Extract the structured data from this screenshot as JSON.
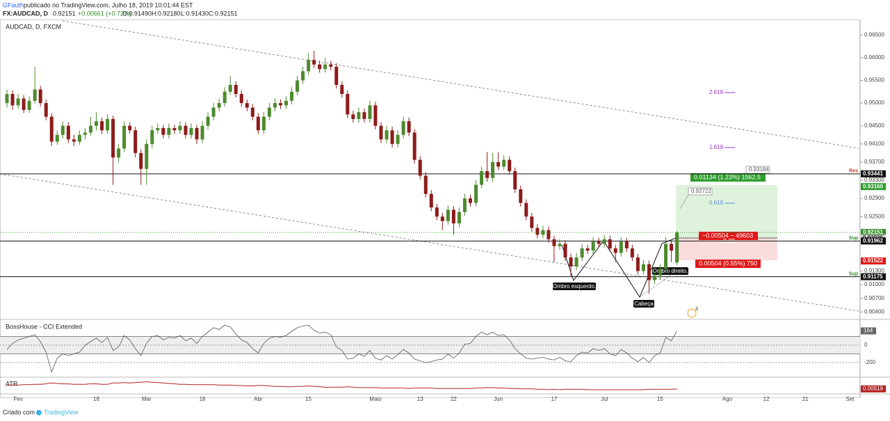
{
  "header": {
    "author": "GFauth",
    "published": "publicado no TradingView.com, Julho 18, 2019 10:01:44 EST",
    "symbol": "FX:AUDCAD, D",
    "price": "0.92151",
    "change": "+0.00661 (+0.72%)",
    "open": "O:0.91490",
    "high": "H:0.92180",
    "low": "L:0.91430",
    "close": "C:0.92151"
  },
  "footer": {
    "prefix": "Criado com",
    "brand": "TradingView"
  },
  "chart_data": {
    "type": "candlestick",
    "title": "AUDCAD, D, FXCM",
    "up_color": "#4e8a2e",
    "down_color": "#8e1b1b",
    "ylim": [
      0.9025,
      0.9678
    ],
    "yticks": [
      {
        "value": 0.965,
        "label": "0.96500"
      },
      {
        "value": 0.96,
        "label": "0.96000"
      },
      {
        "value": 0.955,
        "label": "0.95500"
      },
      {
        "value": 0.95,
        "label": "0.95000"
      },
      {
        "value": 0.945,
        "label": "0.94500"
      },
      {
        "value": 0.941,
        "label": "0.94100"
      },
      {
        "value": 0.937,
        "label": "0.93700"
      },
      {
        "value": 0.933,
        "label": "0.93300"
      },
      {
        "value": 0.929,
        "label": "0.92900"
      },
      {
        "value": 0.925,
        "label": "0.92500"
      },
      {
        "value": 0.913,
        "label": "0.91300"
      },
      {
        "value": 0.91,
        "label": "0.91000"
      },
      {
        "value": 0.907,
        "label": "0.90700"
      },
      {
        "value": 0.904,
        "label": "0.90400"
      }
    ],
    "xlabels": [
      {
        "label": "Fev",
        "index": 2
      },
      {
        "label": "18",
        "index": 16
      },
      {
        "label": "Mar",
        "index": 25
      },
      {
        "label": "18",
        "index": 35
      },
      {
        "label": "Abr",
        "index": 45
      },
      {
        "label": "15",
        "index": 54
      },
      {
        "label": "Maio",
        "index": 66
      },
      {
        "label": "13",
        "index": 74
      },
      {
        "label": "22",
        "index": 80
      },
      {
        "label": "Jun",
        "index": 88
      },
      {
        "label": "17",
        "index": 98
      },
      {
        "label": "Jul",
        "index": 107
      },
      {
        "label": "15",
        "index": 117
      },
      {
        "label": "Ago",
        "index": 129
      },
      {
        "label": "12",
        "index": 136
      },
      {
        "label": "21",
        "index": 143
      },
      {
        "label": "Set",
        "index": 151
      }
    ],
    "ohlc": [
      [
        0.95,
        0.953,
        0.949,
        0.952
      ],
      [
        0.952,
        0.9528,
        0.9485,
        0.9495
      ],
      [
        0.9495,
        0.952,
        0.9488,
        0.951
      ],
      [
        0.951,
        0.9518,
        0.9478,
        0.9485
      ],
      [
        0.9485,
        0.9515,
        0.9478,
        0.9505
      ],
      [
        0.9505,
        0.958,
        0.9498,
        0.953
      ],
      [
        0.953,
        0.9538,
        0.9492,
        0.95
      ],
      [
        0.95,
        0.9508,
        0.9462,
        0.947
      ],
      [
        0.947,
        0.9478,
        0.9405,
        0.9415
      ],
      [
        0.9415,
        0.944,
        0.9408,
        0.943
      ],
      [
        0.943,
        0.946,
        0.9422,
        0.945
      ],
      [
        0.945,
        0.9458,
        0.9412,
        0.942
      ],
      [
        0.942,
        0.943,
        0.9405,
        0.9415
      ],
      [
        0.9415,
        0.944,
        0.9408,
        0.943
      ],
      [
        0.943,
        0.9445,
        0.942,
        0.9435
      ],
      [
        0.9435,
        0.947,
        0.9428,
        0.945
      ],
      [
        0.945,
        0.948,
        0.944,
        0.946
      ],
      [
        0.946,
        0.9468,
        0.9432,
        0.944
      ],
      [
        0.944,
        0.9475,
        0.9432,
        0.9465
      ],
      [
        0.9465,
        0.9472,
        0.932,
        0.938
      ],
      [
        0.938,
        0.941,
        0.937,
        0.94
      ],
      [
        0.94,
        0.946,
        0.9392,
        0.945
      ],
      [
        0.945,
        0.9458,
        0.9432,
        0.944
      ],
      [
        0.944,
        0.9448,
        0.938,
        0.939
      ],
      [
        0.939,
        0.9398,
        0.932,
        0.9355
      ],
      [
        0.9355,
        0.942,
        0.932,
        0.941
      ],
      [
        0.941,
        0.945,
        0.94,
        0.944
      ],
      [
        0.944,
        0.9455,
        0.9432,
        0.9445
      ],
      [
        0.9445,
        0.9452,
        0.9422,
        0.943
      ],
      [
        0.943,
        0.9455,
        0.9422,
        0.9445
      ],
      [
        0.9445,
        0.9452,
        0.9432,
        0.944
      ],
      [
        0.944,
        0.946,
        0.9432,
        0.945
      ],
      [
        0.945,
        0.9458,
        0.9422,
        0.943
      ],
      [
        0.943,
        0.9455,
        0.9422,
        0.9445
      ],
      [
        0.9445,
        0.9452,
        0.941,
        0.942
      ],
      [
        0.942,
        0.946,
        0.9412,
        0.945
      ],
      [
        0.945,
        0.948,
        0.9442,
        0.947
      ],
      [
        0.947,
        0.95,
        0.9462,
        0.949
      ],
      [
        0.949,
        0.951,
        0.9482,
        0.95
      ],
      [
        0.95,
        0.9535,
        0.9492,
        0.9525
      ],
      [
        0.9525,
        0.956,
        0.9518,
        0.954
      ],
      [
        0.954,
        0.9548,
        0.9512,
        0.952
      ],
      [
        0.952,
        0.9528,
        0.9492,
        0.95
      ],
      [
        0.95,
        0.9508,
        0.9482,
        0.949
      ],
      [
        0.949,
        0.9498,
        0.9462,
        0.947
      ],
      [
        0.947,
        0.9478,
        0.9432,
        0.944
      ],
      [
        0.944,
        0.948,
        0.9432,
        0.947
      ],
      [
        0.947,
        0.95,
        0.9462,
        0.949
      ],
      [
        0.949,
        0.951,
        0.9482,
        0.95
      ],
      [
        0.95,
        0.9508,
        0.9487,
        0.9495
      ],
      [
        0.9495,
        0.9515,
        0.9487,
        0.9505
      ],
      [
        0.9505,
        0.9535,
        0.9497,
        0.9525
      ],
      [
        0.9525,
        0.956,
        0.9517,
        0.955
      ],
      [
        0.955,
        0.958,
        0.9542,
        0.957
      ],
      [
        0.957,
        0.961,
        0.9562,
        0.9595
      ],
      [
        0.9595,
        0.9615,
        0.9577,
        0.9585
      ],
      [
        0.9585,
        0.9593,
        0.9567,
        0.9575
      ],
      [
        0.9575,
        0.96,
        0.9567,
        0.9585
      ],
      [
        0.9585,
        0.9593,
        0.9572,
        0.958
      ],
      [
        0.958,
        0.9588,
        0.9532,
        0.954
      ],
      [
        0.954,
        0.9548,
        0.9512,
        0.952
      ],
      [
        0.952,
        0.9528,
        0.9467,
        0.9475
      ],
      [
        0.9475,
        0.9483,
        0.9457,
        0.9465
      ],
      [
        0.9465,
        0.949,
        0.9457,
        0.948
      ],
      [
        0.948,
        0.9488,
        0.9457,
        0.9465
      ],
      [
        0.9465,
        0.9505,
        0.9457,
        0.9495
      ],
      [
        0.9495,
        0.9503,
        0.9442,
        0.945
      ],
      [
        0.945,
        0.9458,
        0.9412,
        0.942
      ],
      [
        0.942,
        0.945,
        0.9412,
        0.944
      ],
      [
        0.944,
        0.9448,
        0.9402,
        0.941
      ],
      [
        0.941,
        0.944,
        0.9402,
        0.943
      ],
      [
        0.943,
        0.947,
        0.9422,
        0.946
      ],
      [
        0.946,
        0.9468,
        0.9427,
        0.9435
      ],
      [
        0.9435,
        0.9443,
        0.9367,
        0.9375
      ],
      [
        0.9375,
        0.9383,
        0.9332,
        0.934
      ],
      [
        0.934,
        0.9348,
        0.9292,
        0.93
      ],
      [
        0.93,
        0.9308,
        0.9262,
        0.927
      ],
      [
        0.927,
        0.9278,
        0.9242,
        0.925
      ],
      [
        0.925,
        0.9258,
        0.922,
        0.924
      ],
      [
        0.924,
        0.9275,
        0.9232,
        0.9265
      ],
      [
        0.9265,
        0.9273,
        0.921,
        0.9235
      ],
      [
        0.9235,
        0.927,
        0.9227,
        0.926
      ],
      [
        0.926,
        0.93,
        0.9252,
        0.929
      ],
      [
        0.929,
        0.9298,
        0.9272,
        0.928
      ],
      [
        0.928,
        0.933,
        0.9272,
        0.932
      ],
      [
        0.932,
        0.936,
        0.9312,
        0.935
      ],
      [
        0.935,
        0.9392,
        0.9327,
        0.9335
      ],
      [
        0.9335,
        0.939,
        0.9327,
        0.937
      ],
      [
        0.937,
        0.9392,
        0.9352,
        0.936
      ],
      [
        0.936,
        0.9385,
        0.9352,
        0.9375
      ],
      [
        0.9375,
        0.9383,
        0.9342,
        0.935
      ],
      [
        0.935,
        0.9358,
        0.9302,
        0.931
      ],
      [
        0.931,
        0.9318,
        0.9272,
        0.928
      ],
      [
        0.928,
        0.9288,
        0.9242,
        0.925
      ],
      [
        0.925,
        0.9258,
        0.9217,
        0.9225
      ],
      [
        0.9225,
        0.9233,
        0.9202,
        0.921
      ],
      [
        0.921,
        0.923,
        0.9202,
        0.922
      ],
      [
        0.922,
        0.9228,
        0.9192,
        0.92
      ],
      [
        0.92,
        0.9208,
        0.915,
        0.9185
      ],
      [
        0.9185,
        0.92,
        0.9177,
        0.919
      ],
      [
        0.919,
        0.9198,
        0.9152,
        0.916
      ],
      [
        0.916,
        0.9168,
        0.9118,
        0.914
      ],
      [
        0.914,
        0.917,
        0.9132,
        0.916
      ],
      [
        0.916,
        0.919,
        0.9152,
        0.918
      ],
      [
        0.918,
        0.9188,
        0.9167,
        0.9175
      ],
      [
        0.9175,
        0.9205,
        0.9167,
        0.9195
      ],
      [
        0.9195,
        0.9203,
        0.9182,
        0.919
      ],
      [
        0.919,
        0.921,
        0.9182,
        0.92
      ],
      [
        0.92,
        0.9208,
        0.9172,
        0.918
      ],
      [
        0.918,
        0.9188,
        0.915,
        0.917
      ],
      [
        0.917,
        0.9205,
        0.9162,
        0.9195
      ],
      [
        0.9195,
        0.9203,
        0.9172,
        0.918
      ],
      [
        0.918,
        0.9188,
        0.9152,
        0.916
      ],
      [
        0.916,
        0.9168,
        0.9122,
        0.913
      ],
      [
        0.913,
        0.9155,
        0.9122,
        0.9145
      ],
      [
        0.9145,
        0.9153,
        0.908,
        0.911
      ],
      [
        0.911,
        0.913,
        0.9102,
        0.912
      ],
      [
        0.912,
        0.9145,
        0.9112,
        0.9135
      ],
      [
        0.9135,
        0.9205,
        0.9127,
        0.919
      ],
      [
        0.919,
        0.9198,
        0.915,
        0.9175
      ],
      [
        0.9149,
        0.9218,
        0.9143,
        0.92151
      ]
    ],
    "price_badges": [
      {
        "value": 0.93441,
        "color": "#111111"
      },
      {
        "value": 0.9316,
        "label": "0.93160",
        "color": "#2e9e2e"
      },
      {
        "value": 0.92151,
        "color": "#3a8f2e"
      },
      {
        "value": 0.92026,
        "color": "#d0d0d0"
      },
      {
        "value": 0.91962,
        "color": "#111111"
      },
      {
        "value": 0.91522,
        "color": "#e01818"
      },
      {
        "value": 0.91175,
        "color": "#111111"
      }
    ],
    "levels": [
      {
        "label": "Res",
        "value": 0.93441,
        "color": "#c0392b"
      },
      {
        "label": "Sup",
        "value": 0.91962,
        "color": "#2e8b2e"
      },
      {
        "label": "Sup",
        "value": 0.91175,
        "color": "#2e8b2e"
      }
    ],
    "annotations": {
      "left_shoulder": "Ombro esquerdo.",
      "head": "Cabeça",
      "right_shoulder": "Ombro direito.",
      "fib_1": "2.618",
      "fib_2": "1.618",
      "fib_3": "0.618",
      "mark_1": "0.93184",
      "mark_2": "0.92722",
      "target": "0.01134 (1.23%) 1562.5",
      "entry": "−0.00504 ~ 49603",
      "ratio": "2.25",
      "stop": "0.00504 (0.55%) 750",
      "alerts": "3"
    },
    "cci": {
      "title": "BossHouse - CCI Extended",
      "color": "#555555",
      "ylim": [
        -352,
        272
      ],
      "yticks": [
        0,
        -200
      ],
      "bands": [
        100,
        -100
      ],
      "last_label": "164",
      "values": [
        -50,
        20,
        60,
        80,
        100,
        120,
        40,
        -80,
        -310,
        -150,
        -100,
        -120,
        -100,
        -80,
        0,
        40,
        80,
        30,
        90,
        -60,
        -20,
        110,
        60,
        -40,
        -120,
        20,
        100,
        110,
        60,
        90,
        80,
        110,
        50,
        80,
        20,
        100,
        150,
        200,
        180,
        230,
        210,
        130,
        60,
        30,
        -40,
        -90,
        20,
        80,
        100,
        90,
        110,
        160,
        200,
        220,
        230,
        170,
        140,
        150,
        120,
        -20,
        -60,
        -160,
        -150,
        -100,
        -130,
        -60,
        -150,
        -170,
        -120,
        -160,
        -110,
        -50,
        -90,
        -160,
        -180,
        -200,
        -190,
        -170,
        -160,
        -100,
        -150,
        -90,
        10,
        20,
        100,
        150,
        120,
        150,
        110,
        120,
        60,
        -40,
        -100,
        -150,
        -160,
        -150,
        -140,
        -160,
        -170,
        -140,
        -180,
        -190,
        -120,
        -80,
        -90,
        -40,
        -60,
        -40,
        -100,
        -120,
        -50,
        -90,
        -150,
        -190,
        -140,
        -200,
        -120,
        -90,
        90,
        50,
        164
      ]
    },
    "atr": {
      "title": "ATR",
      "color": "#b22222",
      "ylim": [
        0.0045,
        0.0075
      ],
      "last_label": "0.00519",
      "values": [
        0.006,
        0.0061,
        0.0061,
        0.0062,
        0.0062,
        0.0063,
        0.0063,
        0.0064,
        0.0066,
        0.0065,
        0.0064,
        0.0064,
        0.0063,
        0.0063,
        0.0063,
        0.0064,
        0.0064,
        0.0063,
        0.0063,
        0.0066,
        0.0066,
        0.0067,
        0.0066,
        0.0067,
        0.0068,
        0.0069,
        0.0068,
        0.0067,
        0.0066,
        0.0065,
        0.0064,
        0.0063,
        0.0063,
        0.0062,
        0.0062,
        0.0062,
        0.0062,
        0.0062,
        0.0061,
        0.0061,
        0.0061,
        0.006,
        0.006,
        0.0059,
        0.0059,
        0.006,
        0.006,
        0.0059,
        0.0058,
        0.0058,
        0.0057,
        0.0057,
        0.0058,
        0.0058,
        0.0059,
        0.0058,
        0.0057,
        0.0056,
        0.0056,
        0.0056,
        0.0056,
        0.0057,
        0.0056,
        0.0055,
        0.0055,
        0.0055,
        0.0055,
        0.0054,
        0.0054,
        0.0054,
        0.0054,
        0.0054,
        0.0053,
        0.0054,
        0.0054,
        0.0054,
        0.0054,
        0.0053,
        0.0053,
        0.0053,
        0.0053,
        0.0053,
        0.0053,
        0.0053,
        0.0054,
        0.0054,
        0.0055,
        0.0055,
        0.0054,
        0.0054,
        0.0053,
        0.0053,
        0.0052,
        0.0052,
        0.0052,
        0.0051,
        0.0051,
        0.005,
        0.0051,
        0.005,
        0.0051,
        0.0051,
        0.0051,
        0.0051,
        0.005,
        0.005,
        0.005,
        0.005,
        0.005,
        0.005,
        0.005,
        0.005,
        0.005,
        0.005,
        0.005,
        0.0051,
        0.0051,
        0.0051,
        0.0051,
        0.0051,
        0.00519
      ]
    }
  }
}
